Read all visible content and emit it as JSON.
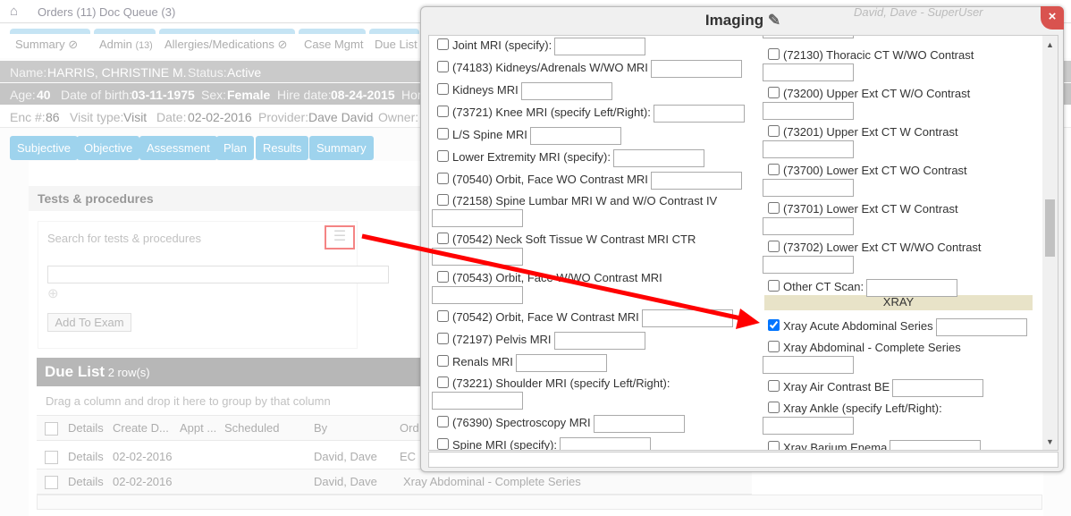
{
  "topnav": {
    "home_icon": "home-icon",
    "orders": "Orders",
    "orders_count": "(11)",
    "doc_queue": "Doc Queue",
    "doc_count": "(3)",
    "user": "David, Dave - SuperUser"
  },
  "tabs": [
    "Summary",
    "Admin",
    "Allergies/Medications",
    "Case Mgmt",
    "Due List"
  ],
  "admin_count": "(13)",
  "patient": {
    "name_label": "Name:",
    "name": "HARRIS, CHRISTINE M.",
    "status_label": "Status:",
    "status": "Active",
    "age_label": "Age:",
    "age": "40",
    "dob_label": "Date of birth:",
    "dob": "03-11-1975",
    "sex_label": "Sex:",
    "sex": "Female",
    "hire_label": "Hire date:",
    "hire": "08-24-2015",
    "hom": "Hom"
  },
  "encounter": {
    "enc_label": "Enc #:",
    "enc": "86",
    "visit_label": "Visit type:",
    "visit": "Visit",
    "date_label": "Date:",
    "date": "02-02-2016",
    "provider_label": "Provider:",
    "provider": "Dave David",
    "owner_label": "Owner:"
  },
  "subtabs": [
    "Subjective",
    "Objective",
    "Assessment",
    "Plan",
    "Results",
    "Summary"
  ],
  "tests": {
    "title": "Tests & procedures",
    "search_label": "Search for tests & procedures",
    "add_button": "Add To Exam"
  },
  "due_list": {
    "title": "Due List",
    "rows_label": "2 row(s)",
    "group_hint": "Drag a column and drop it here to group by that column",
    "columns": [
      "Details",
      "Create D...",
      "Appt ...",
      "Scheduled",
      "By",
      "Ord"
    ],
    "rows": [
      [
        "Details",
        "02-02-2016",
        "",
        "",
        "David, Dave",
        "EC"
      ],
      [
        "Details",
        "02-02-2016",
        "",
        "",
        "David, Dave",
        "Xray Abdominal - Complete Series"
      ]
    ]
  },
  "modal": {
    "title": "Imaging",
    "xray_header": "XRAY",
    "left": [
      {
        "label": "Joint MRI (specify):",
        "checked": false,
        "wrap": false
      },
      {
        "label": "(74183) Kidneys/Adrenals W/WO MRI",
        "checked": false,
        "wrap": false
      },
      {
        "label": "Kidneys MRI",
        "checked": false,
        "wrap": false
      },
      {
        "label": "(73721) Knee MRI (specify Left/Right):",
        "checked": false,
        "wrap": false
      },
      {
        "label": "L/S Spine MRI",
        "checked": false,
        "wrap": false
      },
      {
        "label": "Lower Extremity MRI (specify):",
        "checked": false,
        "wrap": false
      },
      {
        "label": "(70540) Orbit, Face WO Contrast MRI",
        "checked": false,
        "wrap": false
      },
      {
        "label": "(72158) Spine Lumbar MRI W and W/O Contrast IV",
        "checked": false,
        "wrap": true
      },
      {
        "label": "(70542) Neck Soft Tissue W Contrast MRI CTR",
        "checked": false,
        "wrap": true
      },
      {
        "label": "(70543) Orbit, Face W/WO Contrast MRI",
        "checked": false,
        "wrap": true
      },
      {
        "label": "(70542) Orbit, Face W Contrast MRI",
        "checked": false,
        "wrap": false
      },
      {
        "label": "(72197) Pelvis MRI",
        "checked": false,
        "wrap": false
      },
      {
        "label": "Renals MRI",
        "checked": false,
        "wrap": false
      },
      {
        "label": "(73221) Shoulder MRI (specify Left/Right):",
        "checked": false,
        "wrap": true
      },
      {
        "label": "(76390) Spectroscopy MRI",
        "checked": false,
        "wrap": false
      },
      {
        "label": "Spine MRI (specify):",
        "checked": false,
        "wrap": false
      }
    ],
    "right_ct": [
      {
        "label": "(72130) Thoracic CT W/WO Contrast",
        "checked": false,
        "wrap": true
      },
      {
        "label": "(73200) Upper Ext CT W/O Contrast",
        "checked": false,
        "wrap": true
      },
      {
        "label": "(73201) Upper Ext CT W Contrast",
        "checked": false,
        "wrap": true
      },
      {
        "label": "(73700) Lower Ext CT WO Contrast",
        "checked": false,
        "wrap": true
      },
      {
        "label": "(73701) Lower Ext CT W Contrast",
        "checked": false,
        "wrap": true
      },
      {
        "label": "(73702) Lower Ext CT W/WO Contrast",
        "checked": false,
        "wrap": true
      },
      {
        "label": "Other CT Scan:",
        "checked": false,
        "wrap": false
      }
    ],
    "right_xray": [
      {
        "label": "Xray Acute Abdominal Series",
        "checked": true,
        "wrap": false
      },
      {
        "label": "Xray Abdominal - Complete Series",
        "checked": false,
        "wrap": true
      },
      {
        "label": "Xray Air Contrast BE",
        "checked": false,
        "wrap": false
      },
      {
        "label": "Xray Ankle (specify Left/Right):",
        "checked": false,
        "wrap": true
      },
      {
        "label": "Xray Barium Enema",
        "checked": false,
        "wrap": false
      }
    ]
  },
  "colors": {
    "annotation": "#ff0000",
    "tab_accent": "#7cc6ea",
    "close": "#d9534f"
  }
}
